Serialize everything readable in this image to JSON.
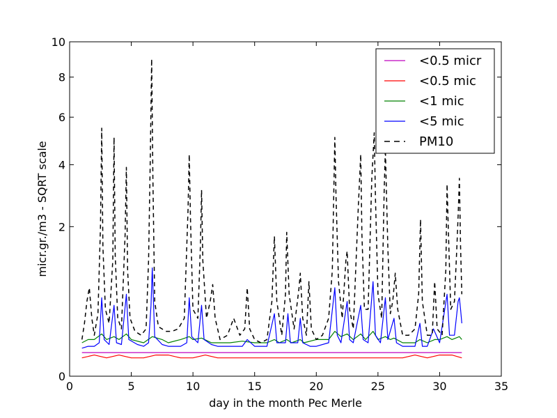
{
  "chart_data": {
    "type": "line",
    "title": "",
    "xlabel": "day in the month Pec Merle",
    "ylabel": "micr.gr./m3 - SQRT scale",
    "xlim": [
      0,
      35
    ],
    "ylim": [
      0,
      10
    ],
    "y_scale": "sqrt",
    "x_ticks": [
      0,
      5,
      10,
      15,
      20,
      25,
      30,
      35
    ],
    "y_ticks": [
      0,
      2,
      4,
      6,
      8,
      10
    ],
    "grid": false,
    "legend_position": "top-right",
    "series": [
      {
        "name": "<0.5 micr",
        "color": "#bf00bf",
        "dash": "solid",
        "x": [
          1.0,
          5.0,
          10.0,
          15.0,
          20.0,
          25.0,
          30.0,
          31.8
        ],
        "y": [
          0.05,
          0.05,
          0.05,
          0.05,
          0.05,
          0.05,
          0.05,
          0.05
        ]
      },
      {
        "name": "<0.5 mic",
        "color": "#ff0000",
        "dash": "solid",
        "x": [
          1.0,
          2.0,
          3.0,
          4.0,
          5.0,
          6.0,
          7.0,
          8.0,
          9.0,
          10.0,
          11.0,
          12.0,
          13.0,
          14.0,
          15.0,
          16.0,
          17.0,
          18.0,
          19.0,
          20.0,
          21.0,
          22.0,
          23.0,
          24.0,
          25.0,
          26.0,
          27.0,
          28.0,
          29.0,
          30.0,
          31.0,
          31.8
        ],
        "y": [
          0.03,
          0.04,
          0.03,
          0.04,
          0.03,
          0.03,
          0.04,
          0.04,
          0.03,
          0.03,
          0.04,
          0.03,
          0.03,
          0.03,
          0.03,
          0.03,
          0.03,
          0.03,
          0.03,
          0.03,
          0.03,
          0.03,
          0.03,
          0.03,
          0.03,
          0.03,
          0.03,
          0.04,
          0.03,
          0.04,
          0.04,
          0.03
        ]
      },
      {
        "name": "<1 mic",
        "color": "#008000",
        "dash": "solid",
        "x": [
          1.0,
          1.5,
          2.0,
          2.6,
          3.0,
          3.6,
          4.0,
          4.6,
          5.0,
          6.0,
          6.7,
          7.5,
          8.0,
          9.0,
          9.7,
          10.0,
          10.7,
          11.5,
          12.0,
          13.0,
          14.0,
          15.0,
          16.0,
          16.6,
          17.0,
          17.6,
          18.0,
          18.7,
          19.0,
          20.0,
          20.5,
          21.0,
          21.5,
          22.0,
          22.5,
          23.0,
          23.6,
          24.0,
          24.6,
          25.0,
          25.6,
          26.0,
          26.3,
          27.0,
          28.0,
          28.4,
          29.0,
          29.6,
          30.0,
          30.6,
          31.0,
          31.6,
          31.8
        ],
        "y": [
          0.1,
          0.12,
          0.12,
          0.16,
          0.12,
          0.14,
          0.12,
          0.16,
          0.12,
          0.1,
          0.14,
          0.12,
          0.1,
          0.12,
          0.14,
          0.12,
          0.13,
          0.1,
          0.1,
          0.1,
          0.11,
          0.1,
          0.1,
          0.12,
          0.1,
          0.12,
          0.1,
          0.12,
          0.1,
          0.12,
          0.12,
          0.12,
          0.18,
          0.14,
          0.16,
          0.12,
          0.16,
          0.12,
          0.18,
          0.12,
          0.14,
          0.12,
          0.13,
          0.1,
          0.1,
          0.12,
          0.1,
          0.12,
          0.12,
          0.14,
          0.12,
          0.14,
          0.12
        ]
      },
      {
        "name": "<5 mic",
        "color": "#0000ff",
        "dash": "solid",
        "x": [
          1.0,
          1.5,
          2.0,
          2.4,
          2.6,
          2.8,
          3.2,
          3.6,
          3.8,
          4.2,
          4.6,
          4.8,
          5.5,
          6.0,
          6.4,
          6.6,
          6.7,
          6.9,
          7.5,
          8.0,
          9.0,
          9.5,
          9.7,
          9.9,
          10.4,
          10.7,
          10.9,
          11.5,
          12.0,
          13.0,
          14.0,
          14.4,
          15.0,
          16.0,
          16.6,
          16.8,
          17.5,
          17.7,
          17.9,
          18.5,
          18.7,
          18.9,
          19.5,
          20.0,
          21.0,
          21.5,
          21.7,
          22.0,
          22.5,
          22.7,
          23.0,
          23.6,
          23.8,
          24.2,
          24.6,
          24.8,
          25.2,
          25.6,
          25.8,
          26.3,
          26.5,
          27.0,
          28.0,
          28.4,
          28.6,
          29.0,
          29.5,
          30.0,
          30.6,
          30.8,
          31.2,
          31.5,
          31.6,
          31.7,
          31.8
        ],
        "y": [
          0.07,
          0.08,
          0.08,
          0.1,
          0.55,
          0.12,
          0.09,
          0.45,
          0.1,
          0.09,
          0.6,
          0.12,
          0.09,
          0.08,
          0.1,
          0.45,
          1.05,
          0.14,
          0.09,
          0.08,
          0.08,
          0.1,
          0.55,
          0.14,
          0.1,
          0.45,
          0.12,
          0.09,
          0.08,
          0.08,
          0.08,
          0.12,
          0.08,
          0.08,
          0.35,
          0.1,
          0.1,
          0.35,
          0.1,
          0.1,
          0.3,
          0.1,
          0.08,
          0.08,
          0.1,
          0.7,
          0.15,
          0.1,
          0.5,
          0.12,
          0.1,
          0.45,
          0.12,
          0.1,
          0.8,
          0.15,
          0.1,
          0.55,
          0.12,
          0.3,
          0.1,
          0.08,
          0.08,
          0.25,
          0.08,
          0.08,
          0.2,
          0.1,
          0.6,
          0.15,
          0.15,
          0.5,
          0.55,
          0.4,
          0.25
        ]
      },
      {
        "name": "PM10",
        "color": "#000000",
        "dash": "dashed",
        "x": [
          1.0,
          1.2,
          1.4,
          1.6,
          1.8,
          2.0,
          2.3,
          2.5,
          2.6,
          2.7,
          2.9,
          3.2,
          3.5,
          3.6,
          3.7,
          3.9,
          4.2,
          4.5,
          4.6,
          4.7,
          4.9,
          5.3,
          5.8,
          6.2,
          6.4,
          6.55,
          6.65,
          6.75,
          6.9,
          7.2,
          7.8,
          8.3,
          8.8,
          9.3,
          9.6,
          9.7,
          9.8,
          10.0,
          10.4,
          10.6,
          10.7,
          10.8,
          11.1,
          11.4,
          11.6,
          11.8,
          12.2,
          12.8,
          13.3,
          13.8,
          14.2,
          14.4,
          14.6,
          15.0,
          15.5,
          16.0,
          16.4,
          16.6,
          16.8,
          17.2,
          17.5,
          17.6,
          17.8,
          18.2,
          18.6,
          18.7,
          18.9,
          19.2,
          19.4,
          19.6,
          20.0,
          20.5,
          21.0,
          21.3,
          21.5,
          21.6,
          21.8,
          22.1,
          22.4,
          22.5,
          22.7,
          23.0,
          23.4,
          23.6,
          23.7,
          23.9,
          24.2,
          24.5,
          24.7,
          24.8,
          25.0,
          25.3,
          25.5,
          25.6,
          25.8,
          26.0,
          26.2,
          26.4,
          26.6,
          27.0,
          27.5,
          28.0,
          28.3,
          28.45,
          28.6,
          29.0,
          29.4,
          29.6,
          29.8,
          30.2,
          30.5,
          30.6,
          30.7,
          30.9,
          31.2,
          31.4,
          31.5,
          31.6,
          31.7,
          31.8
        ],
        "y": [
          0.12,
          0.25,
          0.5,
          0.7,
          0.3,
          0.15,
          0.35,
          2.0,
          5.5,
          1.5,
          0.4,
          0.25,
          1.2,
          5.1,
          1.3,
          0.3,
          0.2,
          1.8,
          3.9,
          1.0,
          0.3,
          0.18,
          0.15,
          0.2,
          1.2,
          4.5,
          9.0,
          3.5,
          0.5,
          0.22,
          0.18,
          0.18,
          0.2,
          0.3,
          2.5,
          4.4,
          2.2,
          0.4,
          0.3,
          1.5,
          3.1,
          1.2,
          0.3,
          0.5,
          0.75,
          0.3,
          0.12,
          0.15,
          0.3,
          0.15,
          0.2,
          0.7,
          0.2,
          0.12,
          0.1,
          0.12,
          0.5,
          1.75,
          0.5,
          0.15,
          0.6,
          1.85,
          0.6,
          0.2,
          0.7,
          0.95,
          0.3,
          0.15,
          0.8,
          0.2,
          0.12,
          0.15,
          0.3,
          1.0,
          5.1,
          2.9,
          0.8,
          0.3,
          1.2,
          1.4,
          0.4,
          0.2,
          2.5,
          4.4,
          1.8,
          0.4,
          0.4,
          3.5,
          5.3,
          2.8,
          0.6,
          0.3,
          3.0,
          4.6,
          1.5,
          0.35,
          0.5,
          0.95,
          0.4,
          0.15,
          0.15,
          0.2,
          0.6,
          2.2,
          0.5,
          0.15,
          0.15,
          0.8,
          0.2,
          0.15,
          1.0,
          3.3,
          2.0,
          0.4,
          0.5,
          1.5,
          2.3,
          3.5,
          1.5,
          0.6
        ]
      }
    ]
  }
}
